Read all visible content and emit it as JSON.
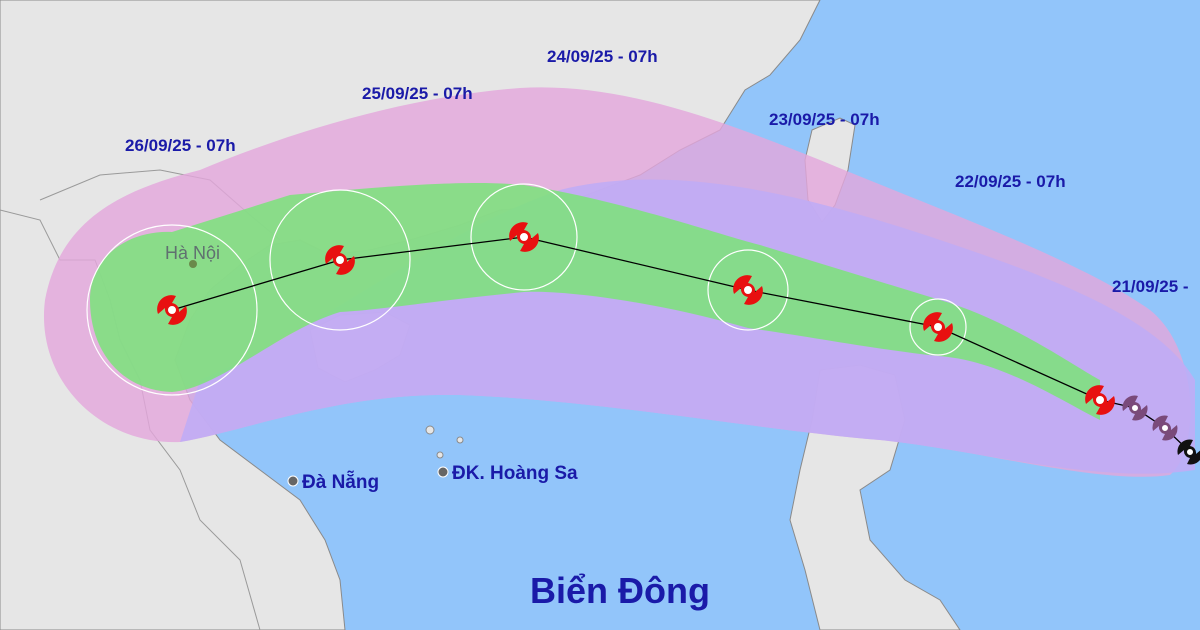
{
  "forecast_labels": [
    "24/09/25 - 07h",
    "25/09/25 - 07h",
    "23/09/25 - 07h",
    "26/09/25 - 07h",
    "22/09/25 - 07h",
    "21/09/25 -"
  ],
  "places": [
    "Hà Nội",
    "Đà Nẵng",
    "ĐK. Hoàng Sa"
  ],
  "sea_label": "Biển Đông"
}
